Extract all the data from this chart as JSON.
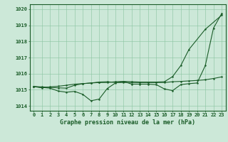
{
  "title": "Graphe pression niveau de la mer (hPa)",
  "xlim": [
    -0.5,
    23.5
  ],
  "ylim": [
    1013.7,
    1020.3
  ],
  "yticks": [
    1014,
    1015,
    1016,
    1017,
    1018,
    1019,
    1020
  ],
  "xticks": [
    0,
    1,
    2,
    3,
    4,
    5,
    6,
    7,
    8,
    9,
    10,
    11,
    12,
    13,
    14,
    15,
    16,
    17,
    18,
    19,
    20,
    21,
    22,
    23
  ],
  "bg_color": "#cce8d8",
  "line_color": "#1a5c28",
  "grid_color": "#88c4a0",
  "x_zigzag": [
    0,
    1,
    2,
    3,
    4,
    5,
    6,
    7,
    8,
    9,
    10,
    11,
    12,
    13,
    14,
    15,
    16,
    17,
    18,
    19,
    20,
    21,
    22,
    23
  ],
  "y_zigzag": [
    1015.2,
    1015.15,
    1015.1,
    1014.92,
    1014.85,
    1014.9,
    1014.72,
    1014.32,
    1014.42,
    1015.08,
    1015.42,
    1015.52,
    1015.35,
    1015.35,
    1015.35,
    1015.32,
    1015.05,
    1014.95,
    1015.32,
    1015.38,
    1015.42,
    1016.5,
    1018.82,
    1019.72
  ],
  "x_tri": [
    0,
    1,
    2,
    3,
    4,
    5,
    6,
    7,
    8,
    9,
    10,
    11,
    12,
    13,
    14,
    15,
    16,
    17,
    18,
    19,
    21,
    23
  ],
  "y_tri": [
    1015.2,
    1015.12,
    1015.18,
    1015.22,
    1015.28,
    1015.35,
    1015.38,
    1015.42,
    1015.45,
    1015.45,
    1015.5,
    1015.52,
    1015.5,
    1015.48,
    1015.48,
    1015.48,
    1015.5,
    1015.82,
    1016.5,
    1017.5,
    1018.75,
    1019.62
  ],
  "x_flat": [
    0,
    1,
    2,
    3,
    4,
    5,
    6,
    7,
    8,
    9,
    10,
    11,
    12,
    13,
    14,
    15,
    16,
    17,
    18,
    19,
    20,
    21,
    22,
    23
  ],
  "y_flat": [
    1015.2,
    1015.18,
    1015.15,
    1015.12,
    1015.1,
    1015.28,
    1015.38,
    1015.42,
    1015.48,
    1015.5,
    1015.45,
    1015.45,
    1015.45,
    1015.45,
    1015.45,
    1015.45,
    1015.45,
    1015.5,
    1015.52,
    1015.55,
    1015.58,
    1015.62,
    1015.7,
    1015.8
  ],
  "tick_fontsize": 5.0,
  "title_fontsize": 6.0,
  "marker_size": 1.8,
  "line_width": 0.8
}
